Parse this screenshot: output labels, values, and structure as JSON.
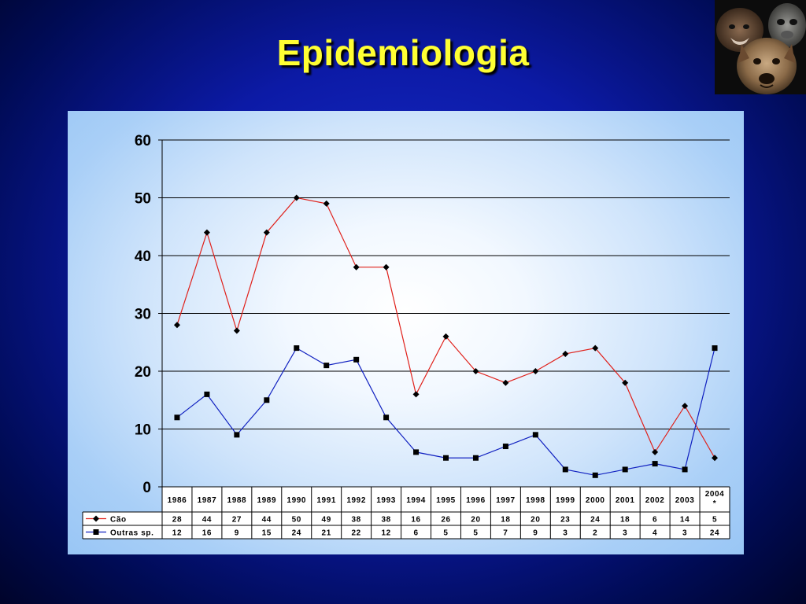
{
  "slide": {
    "title": "Epidemiologia",
    "photo": "bat-monkey-dog-collage"
  },
  "chart_data": {
    "type": "line",
    "title": "",
    "xlabel": "",
    "ylabel": "",
    "categories": [
      "1986",
      "1987",
      "1988",
      "1989",
      "1990",
      "1991",
      "1992",
      "1993",
      "1994",
      "1995",
      "1996",
      "1997",
      "1998",
      "1999",
      "2000",
      "2001",
      "2002",
      "2003",
      "2004*"
    ],
    "ylim": [
      0,
      60
    ],
    "yticks": [
      "0",
      "10",
      "20",
      "30",
      "40",
      "50",
      "60"
    ],
    "grid": true,
    "legend": "data-table-left",
    "series": [
      {
        "name": "Cão",
        "color": "#e0201a",
        "marker": "diamond",
        "values": [
          28,
          44,
          27,
          44,
          50,
          49,
          38,
          38,
          16,
          26,
          20,
          18,
          20,
          23,
          24,
          18,
          6,
          14,
          5
        ]
      },
      {
        "name": "Outras sp.",
        "color": "#1020c0",
        "marker": "square",
        "values": [
          12,
          16,
          9,
          15,
          24,
          21,
          22,
          12,
          6,
          5,
          5,
          7,
          9,
          3,
          2,
          3,
          4,
          3,
          24
        ]
      }
    ]
  }
}
